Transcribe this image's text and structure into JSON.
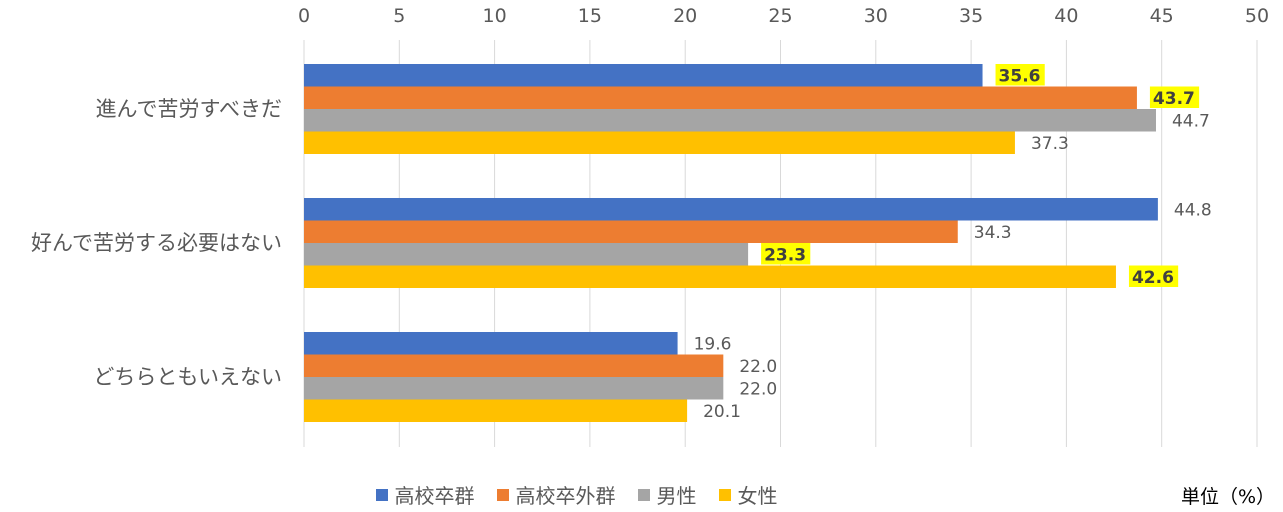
{
  "chart_data": {
    "type": "bar",
    "orientation": "horizontal",
    "categories": [
      "進んで苦労すべきだ",
      "好んで苦労する必要はない",
      "どちらともいえない"
    ],
    "series": [
      {
        "name": "高校卒群",
        "color": "#4472C4",
        "values": [
          35.6,
          44.8,
          19.6
        ],
        "highlight": [
          true,
          false,
          false
        ]
      },
      {
        "name": "高校卒外群",
        "color": "#ED7D31",
        "values": [
          43.7,
          34.3,
          22.0
        ],
        "highlight": [
          true,
          false,
          false
        ]
      },
      {
        "name": "男性",
        "color": "#A5A5A5",
        "values": [
          44.7,
          23.3,
          22.0
        ],
        "highlight": [
          false,
          true,
          false
        ]
      },
      {
        "name": "女性",
        "color": "#FFC000",
        "values": [
          37.3,
          42.6,
          20.1
        ],
        "highlight": [
          false,
          true,
          false
        ]
      }
    ],
    "xlim": [
      0,
      50
    ],
    "xticks": [
      0,
      5,
      10,
      15,
      20,
      25,
      30,
      35,
      40,
      45,
      50
    ],
    "grid": true,
    "legend": "bottom",
    "label_highlight_color": "#FFFF00"
  },
  "unit_label": "単位（%）"
}
